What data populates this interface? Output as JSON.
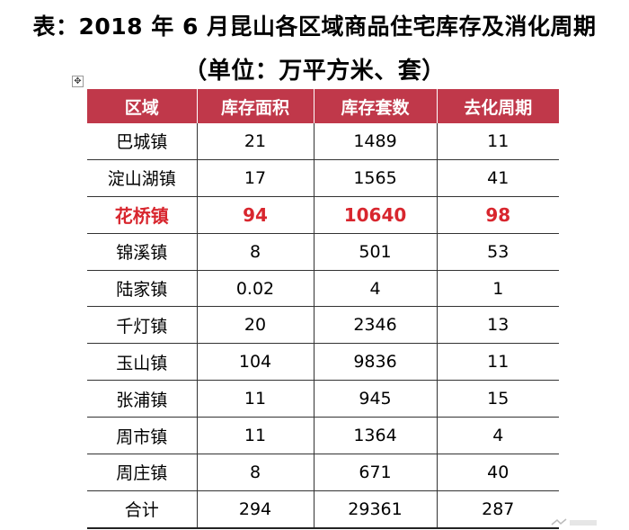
{
  "title_line1": "表：2018 年 6 月昆山各区域商品住宅库存及消化周期",
  "title_line2": "（单位：万平方米、套）",
  "move_handle_glyph": "✥",
  "table": {
    "headers": [
      "区域",
      "库存面积",
      "库存套数",
      "去化周期"
    ],
    "rows": [
      {
        "region": "巴城镇",
        "area": "21",
        "units": "1489",
        "cycle": "11"
      },
      {
        "region": "淀山湖镇",
        "area": "17",
        "units": "1565",
        "cycle": "41"
      },
      {
        "region": "花桥镇",
        "area": "94",
        "units": "10640",
        "cycle": "98"
      },
      {
        "region": "锦溪镇",
        "area": "8",
        "units": "501",
        "cycle": "53"
      },
      {
        "region": "陆家镇",
        "area": "0.02",
        "units": "4",
        "cycle": "1"
      },
      {
        "region": "千灯镇",
        "area": "20",
        "units": "2346",
        "cycle": "13"
      },
      {
        "region": "玉山镇",
        "area": "104",
        "units": "9836",
        "cycle": "11"
      },
      {
        "region": "张浦镇",
        "area": "11",
        "units": "945",
        "cycle": "15"
      },
      {
        "region": "周市镇",
        "area": "11",
        "units": "1364",
        "cycle": "4"
      },
      {
        "region": "周庄镇",
        "area": "8",
        "units": "671",
        "cycle": "40"
      },
      {
        "region": "合计",
        "area": "294",
        "units": "29361",
        "cycle": "287"
      }
    ]
  },
  "colors": {
    "header_bg": "#c0384a",
    "header_text": "#ffffff",
    "highlight_text": "#d8262e"
  }
}
